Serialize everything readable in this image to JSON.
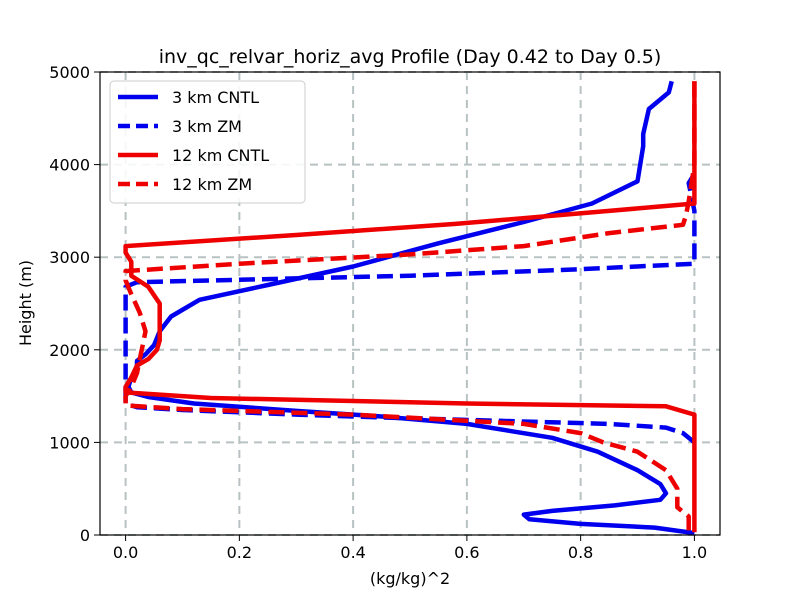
{
  "chart_data": {
    "type": "line",
    "title": "inv_qc_relvar_horiz_avg Profile (Day 0.42 to Day 0.5)",
    "xlabel": "(kg/kg)^2",
    "ylabel": "Height (m)",
    "xlim": [
      -0.045,
      1.045
    ],
    "ylim": [
      0,
      5000
    ],
    "xticks": [
      0.0,
      0.2,
      0.4,
      0.6,
      0.8,
      1.0
    ],
    "xtick_labels": [
      "0.0",
      "0.2",
      "0.4",
      "0.6",
      "0.8",
      "1.0"
    ],
    "yticks": [
      0,
      1000,
      2000,
      3000,
      4000,
      5000
    ],
    "ytick_labels": [
      "0",
      "1000",
      "2000",
      "3000",
      "4000",
      "5000"
    ],
    "grid": true,
    "legend_position": "upper-left",
    "series": [
      {
        "name": "3 km CNTL",
        "color": "#0000ee",
        "style": "solid",
        "points": [
          [
            1.0,
            20
          ],
          [
            0.93,
            80
          ],
          [
            0.8,
            120
          ],
          [
            0.71,
            170
          ],
          [
            0.7,
            220
          ],
          [
            0.75,
            260
          ],
          [
            0.86,
            320
          ],
          [
            0.94,
            380
          ],
          [
            0.95,
            450
          ],
          [
            0.94,
            550
          ],
          [
            0.9,
            700
          ],
          [
            0.83,
            900
          ],
          [
            0.75,
            1050
          ],
          [
            0.6,
            1200
          ],
          [
            0.45,
            1280
          ],
          [
            0.3,
            1340
          ],
          [
            0.12,
            1420
          ],
          [
            0.04,
            1490
          ],
          [
            0.01,
            1540
          ],
          [
            0.005,
            1600
          ],
          [
            0.01,
            1700
          ],
          [
            0.02,
            1800
          ],
          [
            0.02,
            1880
          ],
          [
            0.035,
            1950
          ],
          [
            0.05,
            2050
          ],
          [
            0.06,
            2200
          ],
          [
            0.08,
            2360
          ],
          [
            0.13,
            2540
          ],
          [
            0.25,
            2700
          ],
          [
            0.4,
            2900
          ],
          [
            0.55,
            3150
          ],
          [
            0.7,
            3380
          ],
          [
            0.82,
            3580
          ],
          [
            0.9,
            3820
          ],
          [
            0.91,
            4200
          ],
          [
            0.91,
            4330
          ],
          [
            0.92,
            4600
          ],
          [
            0.955,
            4780
          ],
          [
            0.96,
            4900
          ]
        ]
      },
      {
        "name": "3 km ZM",
        "color": "#0000ee",
        "style": "dashed",
        "points": [
          [
            1.0,
            1000
          ],
          [
            0.98,
            1100
          ],
          [
            0.95,
            1160
          ],
          [
            0.85,
            1200
          ],
          [
            0.5,
            1260
          ],
          [
            0.3,
            1300
          ],
          [
            0.1,
            1350
          ],
          [
            0.02,
            1380
          ],
          [
            0.0,
            1420
          ],
          [
            0.0,
            2000
          ],
          [
            0.0,
            2400
          ],
          [
            0.0,
            2600
          ],
          [
            0.0,
            2680
          ],
          [
            0.02,
            2730
          ],
          [
            0.5,
            2800
          ],
          [
            0.8,
            2870
          ],
          [
            1.0,
            2930
          ],
          [
            1.0,
            3100
          ],
          [
            1.0,
            3500
          ],
          [
            0.99,
            3800
          ],
          [
            1.0,
            3900
          ]
        ]
      },
      {
        "name": "12 km CNTL",
        "color": "#ee0000",
        "style": "solid",
        "points": [
          [
            1.0,
            30
          ],
          [
            1.0,
            300
          ],
          [
            1.0,
            600
          ],
          [
            1.0,
            1000
          ],
          [
            1.0,
            1300
          ],
          [
            0.95,
            1390
          ],
          [
            0.6,
            1420
          ],
          [
            0.15,
            1480
          ],
          [
            0.0,
            1540
          ],
          [
            0.0,
            1600
          ],
          [
            0.01,
            1700
          ],
          [
            0.02,
            1830
          ],
          [
            0.04,
            1900
          ],
          [
            0.055,
            2000
          ],
          [
            0.06,
            2100
          ],
          [
            0.06,
            2300
          ],
          [
            0.06,
            2500
          ],
          [
            0.04,
            2680
          ],
          [
            0.01,
            2800
          ],
          [
            0.01,
            2950
          ],
          [
            0.0,
            3050
          ],
          [
            0.0,
            3120
          ],
          [
            0.3,
            3240
          ],
          [
            0.58,
            3360
          ],
          [
            0.85,
            3500
          ],
          [
            1.0,
            3580
          ],
          [
            1.0,
            4000
          ],
          [
            1.0,
            4500
          ],
          [
            1.0,
            4900
          ]
        ]
      },
      {
        "name": "12 km ZM",
        "color": "#ee0000",
        "style": "dashed",
        "points": [
          [
            0.99,
            50
          ],
          [
            0.99,
            200
          ],
          [
            0.97,
            300
          ],
          [
            0.97,
            420
          ],
          [
            0.97,
            500
          ],
          [
            0.95,
            700
          ],
          [
            0.9,
            900
          ],
          [
            0.84,
            1000
          ],
          [
            0.8,
            1100
          ],
          [
            0.7,
            1200
          ],
          [
            0.4,
            1300
          ],
          [
            0.1,
            1360
          ],
          [
            0.0,
            1400
          ],
          [
            0.0,
            1500
          ],
          [
            0.01,
            1600
          ],
          [
            0.02,
            1750
          ],
          [
            0.025,
            1900
          ],
          [
            0.03,
            2050
          ],
          [
            0.035,
            2200
          ],
          [
            0.025,
            2400
          ],
          [
            0.01,
            2600
          ],
          [
            0.0,
            2750
          ],
          [
            0.0,
            2850
          ],
          [
            0.2,
            2930
          ],
          [
            0.5,
            3030
          ],
          [
            0.7,
            3120
          ],
          [
            0.85,
            3260
          ],
          [
            0.98,
            3350
          ],
          [
            0.985,
            3450
          ],
          [
            0.99,
            3600
          ],
          [
            1.0,
            4000
          ],
          [
            1.0,
            4500
          ],
          [
            1.0,
            4900
          ]
        ]
      }
    ]
  }
}
